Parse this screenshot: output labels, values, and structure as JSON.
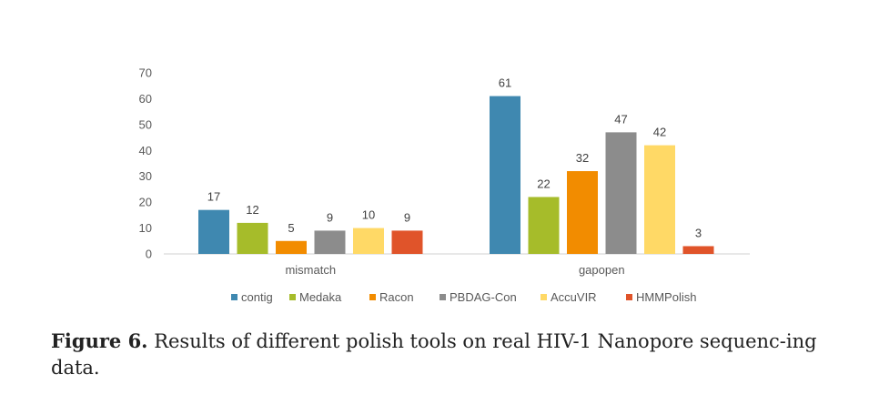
{
  "chart_data": {
    "type": "bar",
    "categories": [
      "mismatch",
      "gapopen"
    ],
    "series": [
      {
        "name": "contig",
        "color": "#3F88B0",
        "values": [
          17,
          61
        ]
      },
      {
        "name": "Medaka",
        "color": "#A6BC2A",
        "values": [
          12,
          22
        ]
      },
      {
        "name": "Racon",
        "color": "#F28C00",
        "values": [
          5,
          32
        ]
      },
      {
        "name": "PBDAG-Con",
        "color": "#8C8C8C",
        "values": [
          9,
          47
        ]
      },
      {
        "name": "AccuVIR",
        "color": "#FFD966",
        "values": [
          10,
          42
        ]
      },
      {
        "name": "HMMPolish",
        "color": "#E0542A",
        "values": [
          9,
          3
        ]
      }
    ],
    "ylim": [
      0,
      70
    ],
    "yticks": [
      "0",
      "10",
      "20",
      "30",
      "40",
      "50",
      "60",
      "70"
    ],
    "grid": false,
    "legend_position": "bottom"
  },
  "caption": {
    "label": "Figure 6.",
    "text": "Results of different polish tools on real HIV-1 Nanopore sequenc-ing data."
  }
}
